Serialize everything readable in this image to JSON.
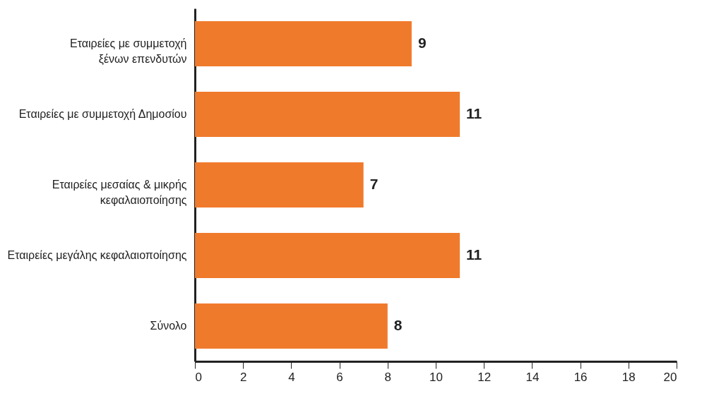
{
  "chart_data": {
    "type": "bar",
    "orientation": "horizontal",
    "categories": [
      "Εταιρείες με συμμετοχή\nξένων επενδυτών",
      "Εταιρείες με συμμετοχή Δημοσίου",
      "Εταιρείες μεσαίας & μικρής\nκεφαλαιοποίησης",
      "Εταιρείες μεγάλης κεφαλαιοποίησης",
      "Σύνολο"
    ],
    "values": [
      9,
      11,
      7,
      11,
      8
    ],
    "color": "#f07a2c",
    "xlim": [
      0,
      20
    ],
    "xticks": [
      0,
      2,
      4,
      6,
      8,
      10,
      12,
      14,
      16,
      18,
      20
    ],
    "data_labels": true,
    "grid": false
  }
}
